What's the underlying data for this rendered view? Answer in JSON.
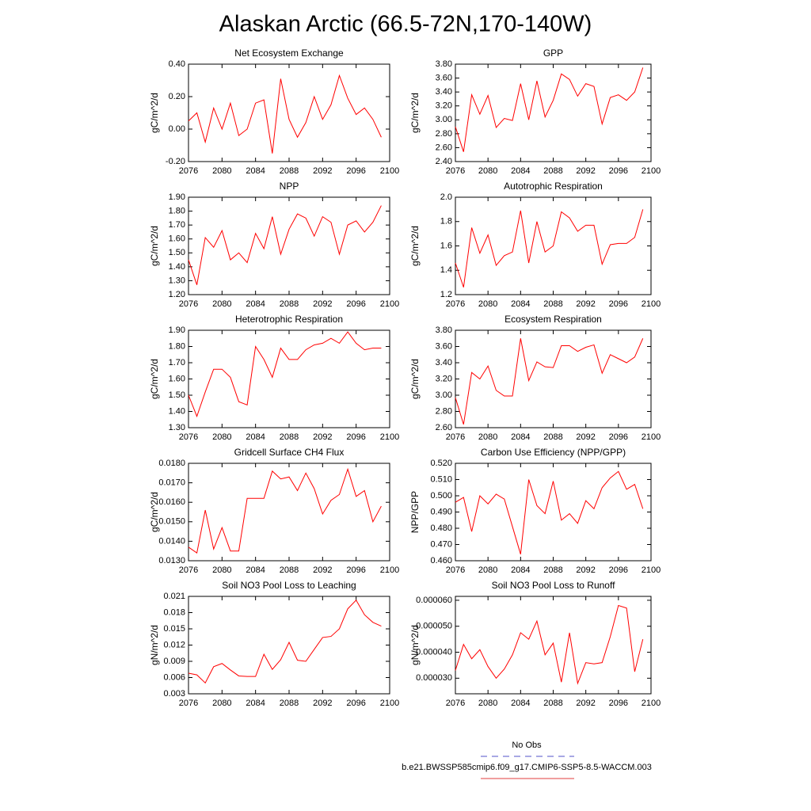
{
  "title": "Alaskan Arctic (66.5-72N,170-140W)",
  "legend": [
    {
      "name": "No Obs",
      "color": "#5050c8",
      "dash": "8 6"
    },
    {
      "name": "b.e21.BWSSP585cmip6.f09_g17.CMIP6-SSP5-8.5-WACCM.003",
      "color": "#e03c3c"
    }
  ],
  "chart_data": [
    {
      "type": "line",
      "title": "Net Ecosystem Exchange",
      "y_label": "gC/m^2/d",
      "color": "#ff0000",
      "x": [
        2076,
        2077,
        2078,
        2079,
        2080,
        2081,
        2082,
        2083,
        2084,
        2085,
        2086,
        2087,
        2088,
        2089,
        2090,
        2091,
        2092,
        2093,
        2094,
        2095,
        2096,
        2097,
        2098,
        2099
      ],
      "values": [
        0.05,
        0.1,
        -0.08,
        0.13,
        0.0,
        0.16,
        -0.04,
        0.0,
        0.16,
        0.18,
        -0.15,
        0.31,
        0.06,
        -0.05,
        0.04,
        0.2,
        0.06,
        0.15,
        0.33,
        0.19,
        0.09,
        0.13,
        0.06,
        -0.05
      ],
      "xlim": [
        2076,
        2100
      ],
      "xticks": [
        2076,
        2080,
        2084,
        2088,
        2092,
        2096,
        2100
      ],
      "ylim": [
        -0.2,
        0.4
      ],
      "yticks": [
        {
          "value": -0.2,
          "label": "-0.20"
        },
        {
          "value": 0,
          "label": "0.00"
        },
        {
          "value": 0.2,
          "label": "0.20"
        },
        {
          "value": 0.4,
          "label": "0.40"
        }
      ]
    },
    {
      "type": "line",
      "title": "GPP",
      "y_label": "gC/m^2/d",
      "color": "#ff0000",
      "x": [
        2076,
        2077,
        2078,
        2079,
        2080,
        2081,
        2082,
        2083,
        2084,
        2085,
        2086,
        2087,
        2088,
        2089,
        2090,
        2091,
        2092,
        2093,
        2094,
        2095,
        2096,
        2097,
        2098,
        2099
      ],
      "values": [
        2.9,
        2.54,
        3.36,
        3.08,
        3.35,
        2.89,
        3.02,
        2.99,
        3.52,
        3.0,
        3.56,
        3.04,
        3.28,
        3.66,
        3.58,
        3.34,
        3.52,
        3.48,
        2.94,
        3.32,
        3.36,
        3.28,
        3.4,
        3.75
      ],
      "xlim": [
        2076,
        2100
      ],
      "xticks": [
        2076,
        2080,
        2084,
        2088,
        2092,
        2096,
        2100
      ],
      "ylim": [
        2.4,
        3.8
      ],
      "yticks": [
        {
          "value": 2.4,
          "label": "2.40"
        },
        {
          "value": 2.6,
          "label": "2.60"
        },
        {
          "value": 2.8,
          "label": "2.80"
        },
        {
          "value": 3.0,
          "label": "3.00"
        },
        {
          "value": 3.2,
          "label": "3.20"
        },
        {
          "value": 3.4,
          "label": "3.40"
        },
        {
          "value": 3.6,
          "label": "3.60"
        },
        {
          "value": 3.8,
          "label": "3.80"
        }
      ]
    },
    {
      "type": "line",
      "title": "NPP",
      "y_label": "gC/m^2/d",
      "color": "#ff0000",
      "x": [
        2076,
        2077,
        2078,
        2079,
        2080,
        2081,
        2082,
        2083,
        2084,
        2085,
        2086,
        2087,
        2088,
        2089,
        2090,
        2091,
        2092,
        2093,
        2094,
        2095,
        2096,
        2097,
        2098,
        2099
      ],
      "values": [
        1.45,
        1.27,
        1.61,
        1.54,
        1.66,
        1.45,
        1.5,
        1.43,
        1.64,
        1.53,
        1.76,
        1.49,
        1.67,
        1.78,
        1.75,
        1.62,
        1.76,
        1.72,
        1.49,
        1.7,
        1.73,
        1.65,
        1.72,
        1.84
      ],
      "xlim": [
        2076,
        2100
      ],
      "xticks": [
        2076,
        2080,
        2084,
        2088,
        2092,
        2096,
        2100
      ],
      "ylim": [
        1.2,
        1.9
      ],
      "yticks": [
        {
          "value": 1.2,
          "label": "1.20"
        },
        {
          "value": 1.3,
          "label": "1.30"
        },
        {
          "value": 1.4,
          "label": "1.40"
        },
        {
          "value": 1.5,
          "label": "1.50"
        },
        {
          "value": 1.6,
          "label": "1.60"
        },
        {
          "value": 1.7,
          "label": "1.70"
        },
        {
          "value": 1.8,
          "label": "1.80"
        },
        {
          "value": 1.9,
          "label": "1.90"
        }
      ]
    },
    {
      "type": "line",
      "title": "Autotrophic Respiration",
      "y_label": "gC/m^2/d",
      "color": "#ff0000",
      "x": [
        2076,
        2077,
        2078,
        2079,
        2080,
        2081,
        2082,
        2083,
        2084,
        2085,
        2086,
        2087,
        2088,
        2089,
        2090,
        2091,
        2092,
        2093,
        2094,
        2095,
        2096,
        2097,
        2098,
        2099
      ],
      "values": [
        1.46,
        1.26,
        1.75,
        1.54,
        1.69,
        1.44,
        1.52,
        1.55,
        1.89,
        1.46,
        1.8,
        1.55,
        1.6,
        1.88,
        1.83,
        1.72,
        1.77,
        1.77,
        1.45,
        1.61,
        1.62,
        1.62,
        1.67,
        1.9
      ],
      "xlim": [
        2076,
        2100
      ],
      "xticks": [
        2076,
        2080,
        2084,
        2088,
        2092,
        2096,
        2100
      ],
      "ylim": [
        1.2,
        2.0
      ],
      "yticks": [
        1.2,
        1.4,
        1.6,
        1.8,
        {
          "value": 2.0,
          "label": "2.0"
        }
      ]
    },
    {
      "type": "line",
      "title": "Heterotrophic Respiration",
      "y_label": "gC/m^2/d",
      "color": "#ff0000",
      "x": [
        2076,
        2077,
        2078,
        2079,
        2080,
        2081,
        2082,
        2083,
        2084,
        2085,
        2086,
        2087,
        2088,
        2089,
        2090,
        2091,
        2092,
        2093,
        2094,
        2095,
        2096,
        2097,
        2098,
        2099
      ],
      "values": [
        1.5,
        1.37,
        1.52,
        1.66,
        1.66,
        1.61,
        1.46,
        1.44,
        1.8,
        1.72,
        1.61,
        1.79,
        1.72,
        1.72,
        1.78,
        1.81,
        1.82,
        1.85,
        1.82,
        1.89,
        1.82,
        1.78,
        1.79,
        1.79
      ],
      "xlim": [
        2076,
        2100
      ],
      "xticks": [
        2076,
        2080,
        2084,
        2088,
        2092,
        2096,
        2100
      ],
      "ylim": [
        1.3,
        1.9
      ],
      "yticks": [
        {
          "value": 1.3,
          "label": "1.30"
        },
        {
          "value": 1.4,
          "label": "1.40"
        },
        {
          "value": 1.5,
          "label": "1.50"
        },
        {
          "value": 1.6,
          "label": "1.60"
        },
        {
          "value": 1.7,
          "label": "1.70"
        },
        {
          "value": 1.8,
          "label": "1.80"
        },
        {
          "value": 1.9,
          "label": "1.90"
        }
      ]
    },
    {
      "type": "line",
      "title": "Ecosystem Respiration",
      "y_label": "gC/m^2/d",
      "color": "#ff0000",
      "x": [
        2076,
        2077,
        2078,
        2079,
        2080,
        2081,
        2082,
        2083,
        2084,
        2085,
        2086,
        2087,
        2088,
        2089,
        2090,
        2091,
        2092,
        2093,
        2094,
        2095,
        2096,
        2097,
        2098,
        2099
      ],
      "values": [
        2.97,
        2.64,
        3.28,
        3.2,
        3.36,
        3.06,
        2.99,
        2.99,
        3.7,
        3.18,
        3.41,
        3.35,
        3.34,
        3.61,
        3.61,
        3.54,
        3.59,
        3.62,
        3.27,
        3.5,
        3.45,
        3.4,
        3.47,
        3.7
      ],
      "xlim": [
        2076,
        2100
      ],
      "xticks": [
        2076,
        2080,
        2084,
        2088,
        2092,
        2096,
        2100
      ],
      "ylim": [
        2.6,
        3.8
      ],
      "yticks": [
        {
          "value": 2.6,
          "label": "2.60"
        },
        {
          "value": 2.8,
          "label": "2.80"
        },
        {
          "value": 3.0,
          "label": "3.00"
        },
        {
          "value": 3.2,
          "label": "3.20"
        },
        {
          "value": 3.4,
          "label": "3.40"
        },
        {
          "value": 3.6,
          "label": "3.60"
        },
        {
          "value": 3.8,
          "label": "3.80"
        }
      ]
    },
    {
      "type": "line",
      "title": "Gridcell Surface CH4 Flux",
      "y_label": "gC/m^2/d",
      "color": "#ff0000",
      "x": [
        2076,
        2077,
        2078,
        2079,
        2080,
        2081,
        2082,
        2083,
        2084,
        2085,
        2086,
        2087,
        2088,
        2089,
        2090,
        2091,
        2092,
        2093,
        2094,
        2095,
        2096,
        2097,
        2098,
        2099
      ],
      "values": [
        0.0137,
        0.0134,
        0.0156,
        0.0136,
        0.0147,
        0.0135,
        0.0135,
        0.0162,
        0.0162,
        0.0162,
        0.0176,
        0.0172,
        0.0173,
        0.0166,
        0.0175,
        0.0167,
        0.0154,
        0.0161,
        0.0164,
        0.0177,
        0.0163,
        0.0166,
        0.015,
        0.0158
      ],
      "xlim": [
        2076,
        2100
      ],
      "xticks": [
        2076,
        2080,
        2084,
        2088,
        2092,
        2096,
        2100
      ],
      "ylim": [
        0.013,
        0.018
      ],
      "yticks": [
        {
          "value": 0.013,
          "label": "0.0130"
        },
        {
          "value": 0.014,
          "label": "0.0140"
        },
        {
          "value": 0.015,
          "label": "0.0150"
        },
        {
          "value": 0.016,
          "label": "0.0160"
        },
        {
          "value": 0.017,
          "label": "0.0170"
        },
        {
          "value": 0.018,
          "label": "0.0180"
        }
      ]
    },
    {
      "type": "line",
      "title": "Carbon Use Efficiency (NPP/GPP)",
      "y_label": "NPP/GPP",
      "color": "#ff0000",
      "x": [
        2076,
        2077,
        2078,
        2079,
        2080,
        2081,
        2082,
        2083,
        2084,
        2085,
        2086,
        2087,
        2088,
        2089,
        2090,
        2091,
        2092,
        2093,
        2094,
        2095,
        2096,
        2097,
        2098,
        2099
      ],
      "values": [
        0.496,
        0.499,
        0.478,
        0.5,
        0.495,
        0.501,
        0.498,
        0.481,
        0.464,
        0.51,
        0.494,
        0.489,
        0.509,
        0.485,
        0.489,
        0.483,
        0.497,
        0.492,
        0.505,
        0.511,
        0.515,
        0.504,
        0.507,
        0.492
      ],
      "xlim": [
        2076,
        2100
      ],
      "xticks": [
        2076,
        2080,
        2084,
        2088,
        2092,
        2096,
        2100
      ],
      "ylim": [
        0.46,
        0.52
      ],
      "yticks": [
        {
          "value": 0.46,
          "label": "0.460"
        },
        {
          "value": 0.47,
          "label": "0.470"
        },
        {
          "value": 0.48,
          "label": "0.480"
        },
        {
          "value": 0.49,
          "label": "0.490"
        },
        {
          "value": 0.5,
          "label": "0.500"
        },
        {
          "value": 0.51,
          "label": "0.510"
        },
        {
          "value": 0.52,
          "label": "0.520"
        }
      ]
    },
    {
      "type": "line",
      "title": "Soil NO3 Pool Loss to Leaching",
      "y_label": "gN/m^2/d",
      "color": "#ff0000",
      "x": [
        2076,
        2077,
        2078,
        2079,
        2080,
        2081,
        2082,
        2083,
        2084,
        2085,
        2086,
        2087,
        2088,
        2089,
        2090,
        2091,
        2092,
        2093,
        2094,
        2095,
        2096,
        2097,
        2098,
        2099
      ],
      "values": [
        0.0068,
        0.0065,
        0.005,
        0.008,
        0.0086,
        0.0074,
        0.0063,
        0.0062,
        0.0062,
        0.0103,
        0.0075,
        0.0093,
        0.0125,
        0.0092,
        0.009,
        0.0112,
        0.0134,
        0.0136,
        0.015,
        0.0187,
        0.0203,
        0.0176,
        0.0162,
        0.0155
      ],
      "xlim": [
        2076,
        2100
      ],
      "xticks": [
        2076,
        2080,
        2084,
        2088,
        2092,
        2096,
        2100
      ],
      "ylim": [
        0.003,
        0.021
      ],
      "yticks": [
        0.003,
        0.006,
        0.009,
        0.012,
        0.015,
        0.018,
        0.021
      ]
    },
    {
      "type": "line",
      "title": "Soil NO3 Pool Loss to Runoff",
      "y_label": "gN/m^2/d",
      "color": "#ff0000",
      "x": [
        2076,
        2077,
        2078,
        2079,
        2080,
        2081,
        2082,
        2083,
        2084,
        2085,
        2086,
        2087,
        2088,
        2089,
        2090,
        2091,
        2092,
        2093,
        2094,
        2095,
        2096,
        2097,
        2098,
        2099
      ],
      "values": [
        3.3e-05,
        4.3e-05,
        3.75e-05,
        4.1e-05,
        3.45e-05,
        3e-05,
        3.35e-05,
        3.9e-05,
        4.75e-05,
        4.5e-05,
        5.2e-05,
        3.9e-05,
        4.35e-05,
        2.85e-05,
        4.75e-05,
        2.8e-05,
        3.6e-05,
        3.55e-05,
        3.6e-05,
        4.6e-05,
        5.8e-05,
        5.7e-05,
        3.25e-05,
        4.5e-05
      ],
      "xlim": [
        2076,
        2100
      ],
      "xticks": [
        2076,
        2080,
        2084,
        2088,
        2092,
        2096,
        2100
      ],
      "ylim": [
        2.4e-05,
        6.15e-05
      ],
      "yticks": [
        {
          "value": 3e-05,
          "label": "0.000030"
        },
        {
          "value": 4e-05,
          "label": "0.000040"
        },
        {
          "value": 5e-05,
          "label": "0.000050"
        },
        {
          "value": 6e-05,
          "label": "0.000060"
        }
      ]
    }
  ]
}
